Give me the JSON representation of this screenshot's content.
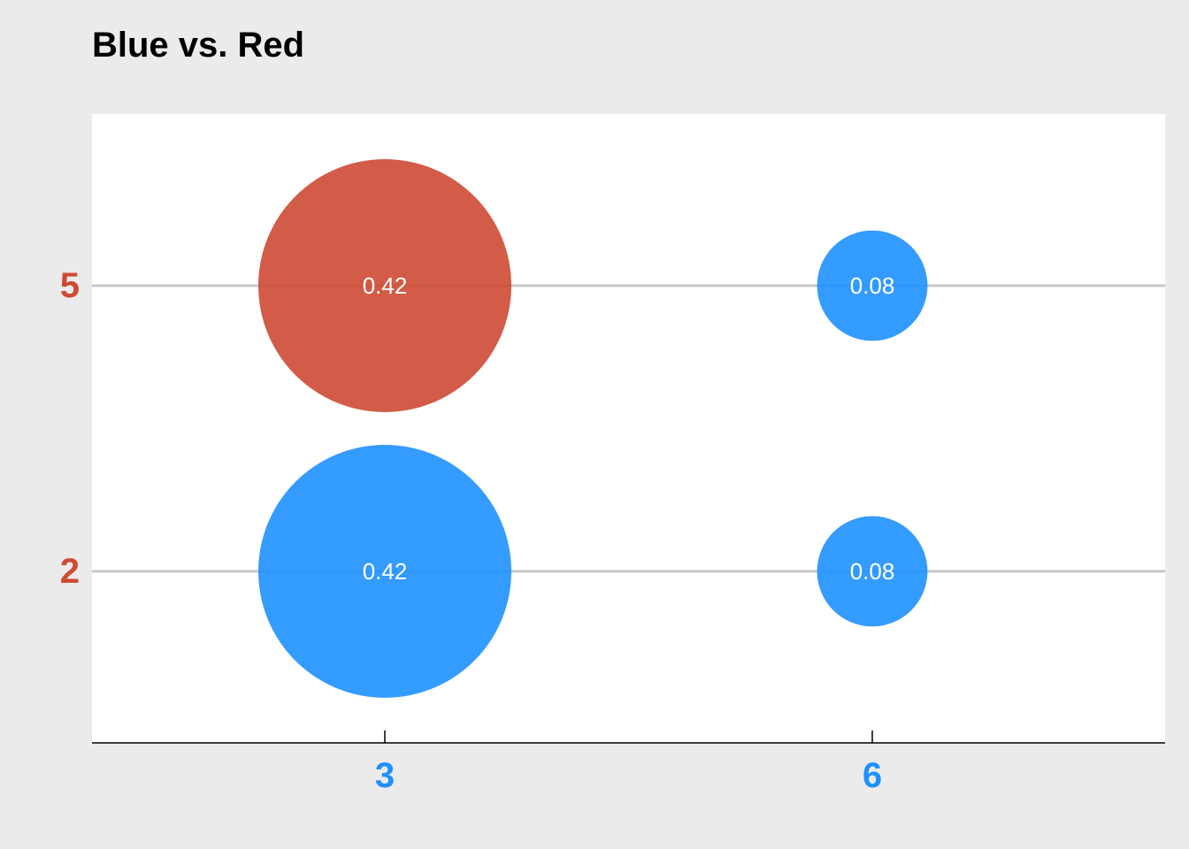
{
  "chart_data": {
    "type": "scatter",
    "title": "Blue vs. Red",
    "xlabel": "",
    "ylabel": "",
    "x_ticks": [
      "3",
      "6"
    ],
    "y_ticks": [
      "2",
      "5"
    ],
    "grid": "horizontal",
    "points": [
      {
        "x": 3,
        "y": 5,
        "value": 0.42,
        "label": "0.42",
        "color": "#cd4a33"
      },
      {
        "x": 6,
        "y": 5,
        "value": 0.08,
        "label": "0.08",
        "color": "#1e90ff"
      },
      {
        "x": 3,
        "y": 2,
        "value": 0.42,
        "label": "0.42",
        "color": "#1e90ff"
      },
      {
        "x": 6,
        "y": 2,
        "value": 0.08,
        "label": "0.08",
        "color": "#1e90ff"
      }
    ],
    "colors": {
      "red": "#cd4a33",
      "blue": "#1e90ff",
      "background": "#ebebeb",
      "panel": "#ffffff",
      "grid": "#c8c8c8",
      "y_tick_text": "#cd4a33",
      "x_tick_text": "#1e90ff"
    }
  }
}
